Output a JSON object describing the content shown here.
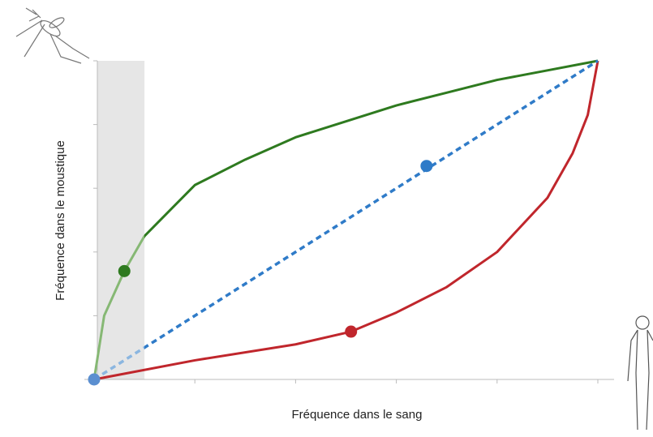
{
  "chart_data": {
    "type": "line",
    "xlabel": "Fréquence dans le sang",
    "ylabel": "Fréquence dans le moustique",
    "xlim": [
      0,
      1
    ],
    "ylim": [
      0,
      1
    ],
    "xticks": [
      0,
      0.2,
      0.4,
      0.6,
      0.8,
      1
    ],
    "yticks": [
      0,
      0.2,
      0.4,
      0.6,
      0.8,
      1
    ],
    "shaded_region": [
      0,
      0.1
    ],
    "series": [
      {
        "color": "#2e7a1f",
        "light_color": "#86b874",
        "dashed": false,
        "x": [
          0,
          0.02,
          0.06,
          0.1,
          0.2,
          0.3,
          0.4,
          0.5,
          0.6,
          0.7,
          0.8,
          0.9,
          1
        ],
        "values": [
          0,
          0.2,
          0.34,
          0.45,
          0.61,
          0.69,
          0.76,
          0.81,
          0.86,
          0.9,
          0.94,
          0.97,
          1
        ]
      },
      {
        "color": "#c0262c",
        "light_color": "#c0262c",
        "dashed": false,
        "x": [
          0,
          0.2,
          0.4,
          0.51,
          0.6,
          0.7,
          0.8,
          0.9,
          0.95,
          0.98,
          1
        ],
        "values": [
          0,
          0.06,
          0.11,
          0.15,
          0.21,
          0.29,
          0.4,
          0.57,
          0.71,
          0.83,
          1
        ]
      },
      {
        "color": "#2f7bc8",
        "light_color": "#8bb6e0",
        "dashed": true,
        "x": [
          0,
          1
        ],
        "values": [
          0,
          1
        ]
      }
    ],
    "points": [
      {
        "x": 0.06,
        "y": 0.34,
        "color": "#2e7a1f"
      },
      {
        "x": 0.66,
        "y": 0.67,
        "color": "#2f7bc8"
      },
      {
        "x": 0.51,
        "y": 0.15,
        "color": "#c0262c"
      },
      {
        "x": 0,
        "y": 0,
        "color": "#5b8fd0"
      }
    ]
  }
}
